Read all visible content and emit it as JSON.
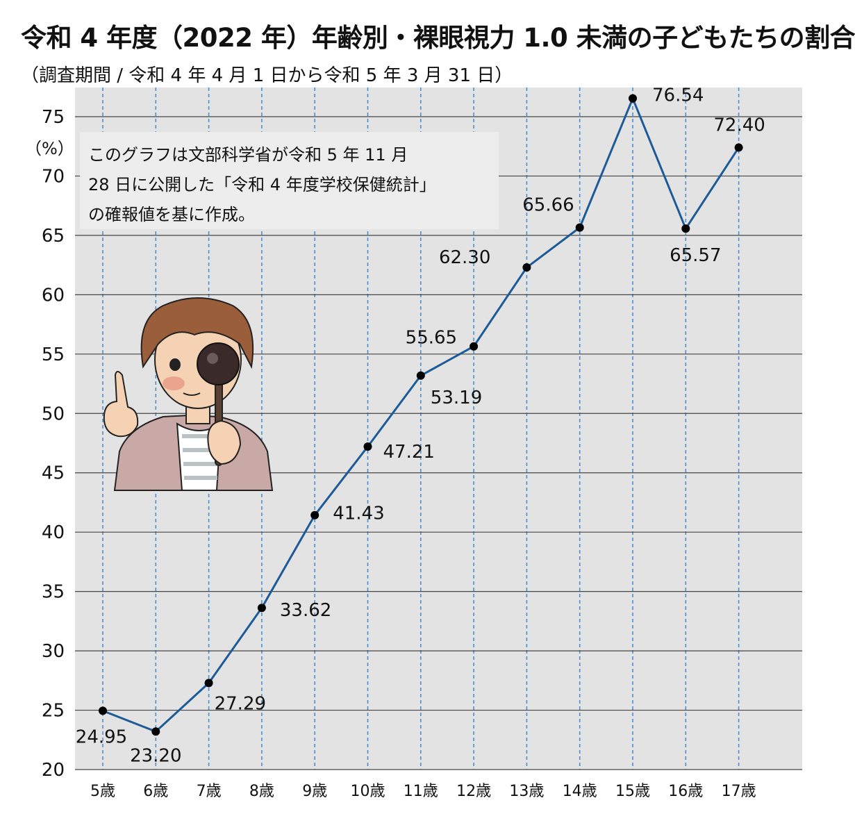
{
  "title": "令和 4 年度（2022 年）年齢別・裸眼視力 1.0 未満の子どもたちの割合",
  "subtitle": "（調査期間 / 令和 4 年 4 月 1 日から令和 5 年 3 月 31 日）",
  "note_lines": [
    "このグラフは文部科学省が令和 5 年 11 月",
    "28 日に公開した「令和 4 年度学校保健統計」",
    "の確報値を基に作成。"
  ],
  "colors": {
    "line": "#1c5a99",
    "plot_background": "#e3e3e3",
    "grid": "#444444",
    "vertical_grid": "#4a90d0",
    "point": "#000000"
  },
  "illustration": "child-with-eye-occluder",
  "chart_data": {
    "type": "line",
    "categories": [
      "5歳",
      "6歳",
      "7歳",
      "8歳",
      "9歳",
      "10歳",
      "11歳",
      "12歳",
      "13歳",
      "14歳",
      "15歳",
      "16歳",
      "17歳"
    ],
    "series": [
      {
        "values": [
          24.95,
          23.2,
          27.29,
          33.62,
          41.43,
          47.21,
          53.19,
          55.65,
          62.3,
          65.66,
          76.54,
          65.57,
          72.4
        ]
      }
    ],
    "data_labels": [
      "24.95",
      "23.20",
      "27.29",
      "33.62",
      "41.43",
      "47.21",
      "53.19",
      "55.65",
      "62.30",
      "65.66",
      "76.54",
      "65.57",
      "72.40"
    ],
    "ylabel": "（%）",
    "ylim": [
      20,
      78
    ],
    "yticks": [
      "20",
      "25",
      "30",
      "35",
      "40",
      "45",
      "50",
      "55",
      "60",
      "65",
      "70",
      "75"
    ],
    "grid": true
  }
}
